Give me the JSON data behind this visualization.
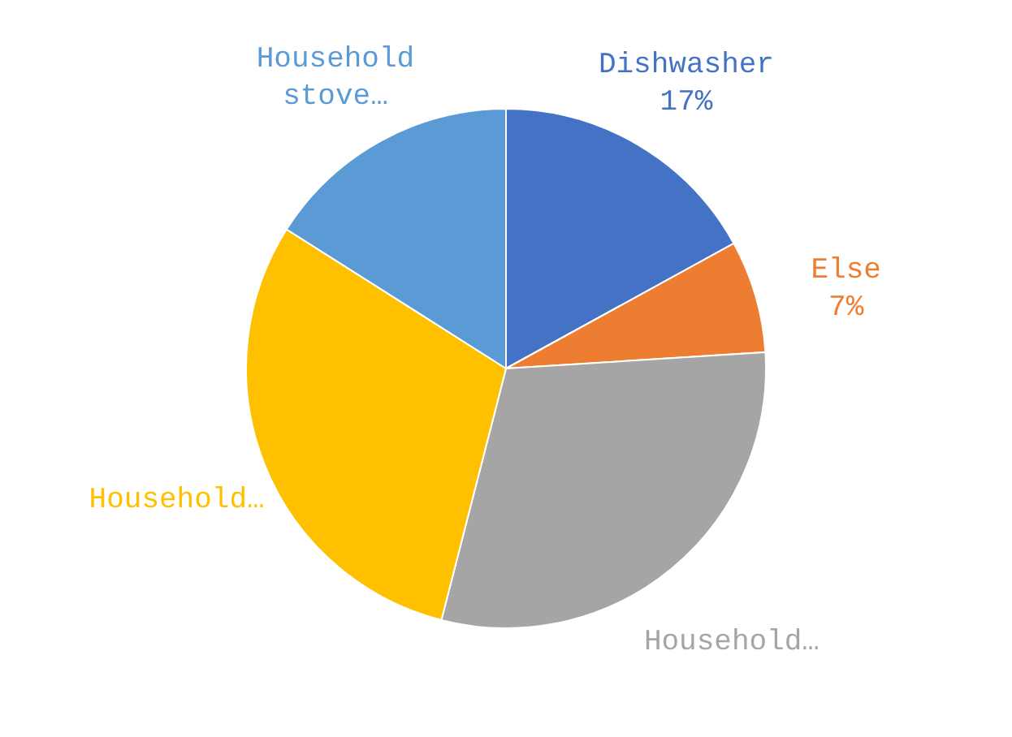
{
  "chart_data": {
    "type": "pie",
    "categories": [
      "Dishwasher",
      "Else",
      "Household…",
      "Household…",
      "Household stove…"
    ],
    "values": [
      17,
      7,
      30,
      30,
      16
    ],
    "colors": [
      "#4472c4",
      "#ed7d31",
      "#a5a5a5",
      "#ffc000",
      "#5b9bd5"
    ],
    "value_labels": [
      "17%",
      "7%",
      null,
      null,
      null
    ],
    "legend": false
  }
}
